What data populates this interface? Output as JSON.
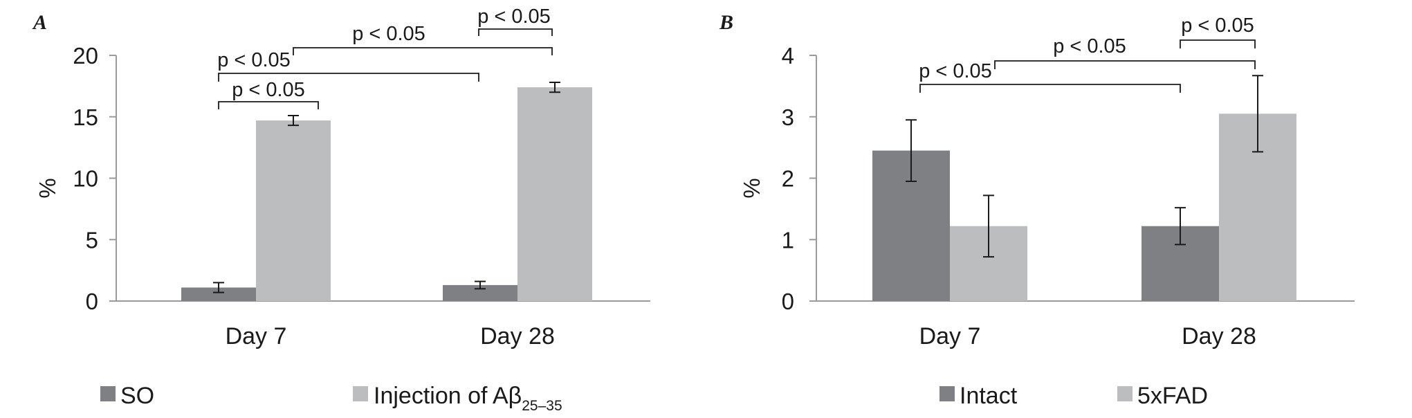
{
  "colors": {
    "dark": "#7f8084",
    "light": "#bcbdbf"
  },
  "chart_data": [
    {
      "type": "bar",
      "panel_label": "A",
      "categories": [
        "Day 7",
        "Day 28"
      ],
      "ylabel": "%",
      "ylim": [
        0,
        20
      ],
      "yticks": [
        "0",
        "5",
        "10",
        "15",
        "20"
      ],
      "series": [
        {
          "name": "SO",
          "values": [
            1.1,
            1.3
          ],
          "errors": [
            0.4,
            0.3
          ]
        },
        {
          "name": "Injection of Aβ",
          "name_subscript": "25–35",
          "values": [
            14.7,
            17.4
          ],
          "errors": [
            0.4,
            0.4
          ]
        }
      ],
      "annotations": [
        "p < 0.05",
        "p < 0.05",
        "p < 0.05",
        "p < 0.05"
      ]
    },
    {
      "type": "bar",
      "panel_label": "B",
      "categories": [
        "Day 7",
        "Day 28"
      ],
      "ylabel": "%",
      "ylim": [
        0,
        4
      ],
      "yticks": [
        "0",
        "1",
        "2",
        "3",
        "4"
      ],
      "series": [
        {
          "name": "Intact",
          "values": [
            2.45,
            1.22
          ],
          "errors": [
            0.5,
            0.3
          ]
        },
        {
          "name": "5xFAD",
          "values": [
            1.22,
            3.05
          ],
          "errors": [
            0.5,
            0.62
          ]
        }
      ],
      "annotations": [
        "p < 0.05",
        "p < 0.05",
        "p < 0.05"
      ]
    }
  ]
}
